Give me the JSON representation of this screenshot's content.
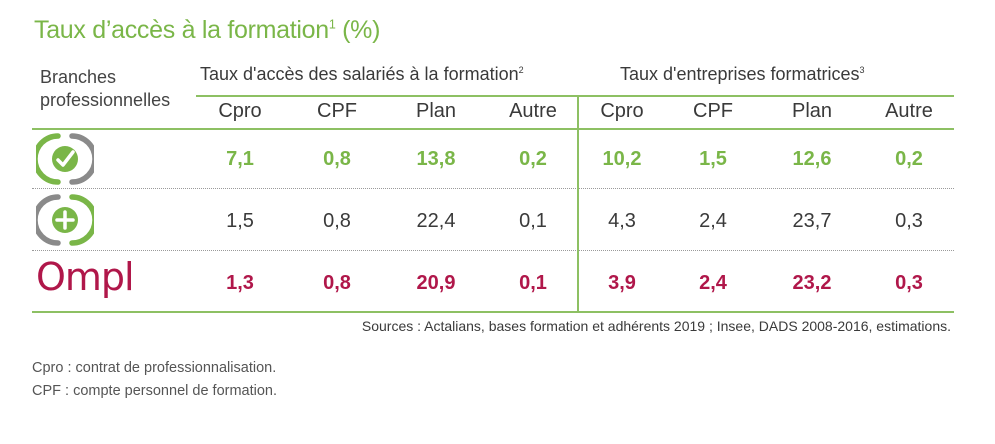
{
  "title": {
    "text": "Taux d’accès à la formation",
    "sup": "1",
    "suffix": " (%)"
  },
  "branches_label": {
    "line1": "Branches",
    "line2": "professionnelles"
  },
  "group_left": {
    "text": "Taux d'accès des salariés à la formation",
    "sup": "2"
  },
  "group_right": {
    "text": "Taux d'entreprises formatrices",
    "sup": "3"
  },
  "columns": [
    "Cpro",
    "CPF",
    "Plan",
    "Autre",
    "Cpro",
    "CPF",
    "Plan",
    "Autre"
  ],
  "rows": [
    {
      "logo": "branch-green-check-logo",
      "values": [
        "7,1",
        "0,8",
        "13,8",
        "0,2",
        "10,2",
        "1,5",
        "12,6",
        "0,2"
      ]
    },
    {
      "logo": "branch-plus-logo",
      "values": [
        "1,5",
        "0,8",
        "22,4",
        "0,1",
        "4,3",
        "2,4",
        "23,7",
        "0,3"
      ]
    },
    {
      "logo": "ompl-logo",
      "logo_text": "Ompl",
      "values": [
        "1,3",
        "0,8",
        "20,9",
        "0,1",
        "3,9",
        "2,4",
        "23,2",
        "0,3"
      ]
    }
  ],
  "sources": "Sources : Actalians, bases formation et adhérents 2019 ; Insee, DADS 2008-2016, estimations.",
  "footnotes": [
    "Cpro : contrat de professionnalisation.",
    "CPF : compte personnel de formation."
  ],
  "colors": {
    "green": "#7ab648",
    "red": "#b0174a",
    "text": "#3a3a3a"
  }
}
